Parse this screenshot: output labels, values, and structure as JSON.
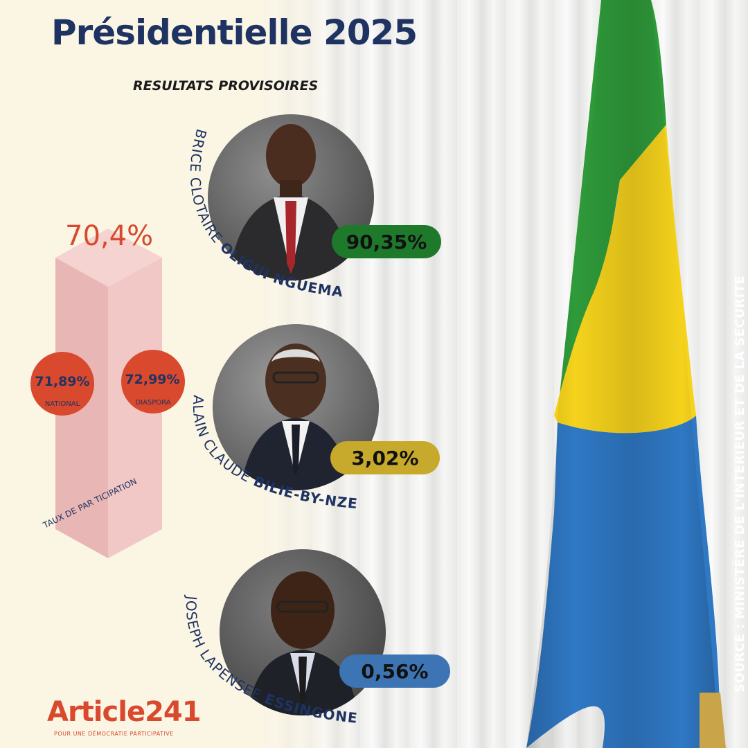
{
  "header": {
    "title": "Présidentielle 2025",
    "subtitle": "RESULTATS PROVISOIRES"
  },
  "participation": {
    "value": "70,4%",
    "label": "TAUX DE PAR TICIPATION",
    "national": {
      "value": "71,89%",
      "label": "NATIONAL"
    },
    "diaspora": {
      "value": "72,99%",
      "label": "DIASPORA"
    }
  },
  "candidates": [
    {
      "first": "BRICE CLOTAIRE",
      "last": "OLIGUI NGUEMA",
      "result": "90,35%",
      "color": "#1e7a2a"
    },
    {
      "first": "ALAIN CLAUDE",
      "last": "BILIE-BY-NZE",
      "result": "3,02%",
      "color": "#c7a92b"
    },
    {
      "first": "JOSEPH LAPENSEE",
      "last": "ESSINGONE",
      "result": "0,56%",
      "color": "#3d74b3"
    }
  ],
  "source": "SOURCE : MINISTÈRE DE L'INTERIEUR ET DE LA SECURITE",
  "logo": {
    "name": "Article241",
    "tagline": "POUR UNE DÉMOCRATIE PARTICIPATIVE"
  },
  "colors": {
    "title": "#1f3362",
    "accent": "#d8492d",
    "flag_green": "#2f9a3a",
    "flag_yellow": "#f5d21c",
    "flag_blue": "#2f78c4"
  },
  "chart_data": {
    "type": "bar",
    "title": "Présidentielle 2025",
    "subtitle": "RESULTATS PROVISOIRES",
    "categories": [
      "BRICE CLOTAIRE OLIGUI NGUEMA",
      "ALAIN CLAUDE BILIE-BY-NZE",
      "JOSEPH LAPENSEE ESSINGONE"
    ],
    "values": [
      90.35,
      3.02,
      0.56
    ],
    "unit": "%",
    "participation": {
      "total": 70.4,
      "national": 71.89,
      "diaspora": 72.99
    }
  }
}
